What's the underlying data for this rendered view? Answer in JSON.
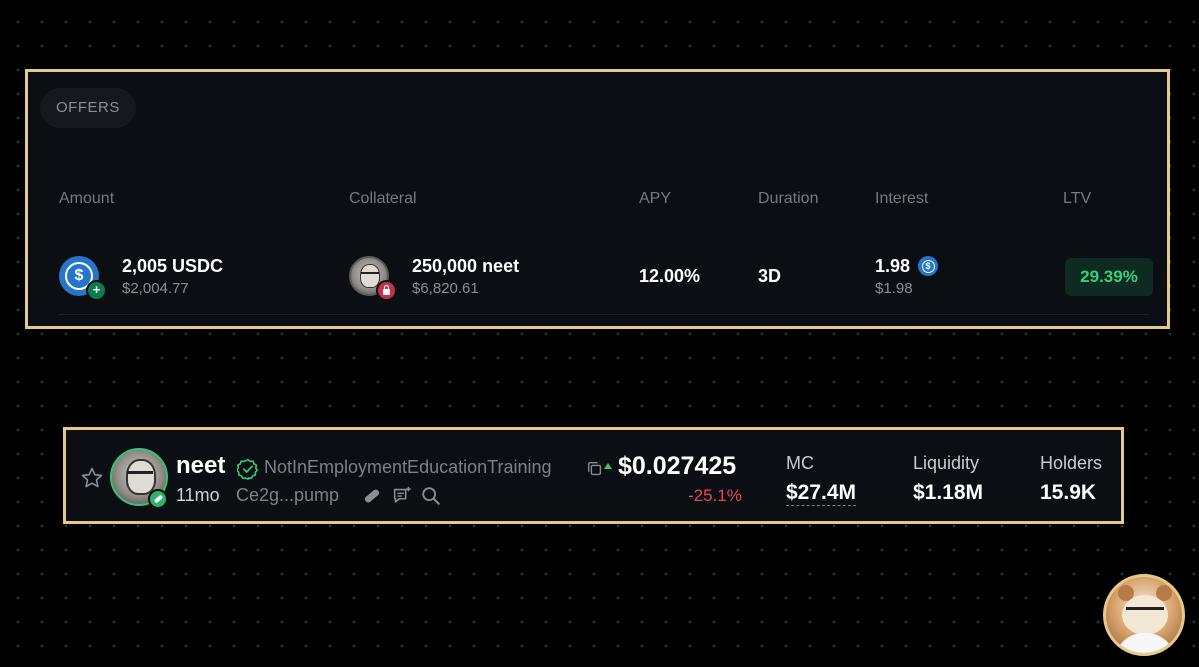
{
  "offers": {
    "tab_label": "OFFERS",
    "columns": {
      "amount": "Amount",
      "collateral": "Collateral",
      "apy": "APY",
      "duration": "Duration",
      "interest": "Interest",
      "ltv": "LTV"
    },
    "row": {
      "amount_main": "2,005 USDC",
      "amount_sub": "$2,004.77",
      "amount_icon": "usdc-icon",
      "collateral_main": "250,000 neet",
      "collateral_sub": "$6,820.61",
      "collateral_icon": "neet-token-icon",
      "apy": "12.00%",
      "duration": "3D",
      "interest_main": "1.98",
      "interest_sub": "$1.98",
      "ltv": "29.39%"
    },
    "colors": {
      "border": "#e6c98a",
      "ltv_text": "#33d17a",
      "usdc_blue": "#2775ca"
    }
  },
  "token": {
    "symbol": "neet",
    "name": "NotInEmploymentEducationTraining",
    "age": "11mo",
    "address": "Ce2g...pump",
    "price": "$0.027425",
    "change": "-25.1%",
    "stats": [
      {
        "label": "MC",
        "value": "$27.4M"
      },
      {
        "label": "Liquidity",
        "value": "$1.18M"
      },
      {
        "label": "Holders",
        "value": "15.9K"
      }
    ],
    "colors": {
      "verified": "#33c37a",
      "negative": "#e8455f"
    }
  }
}
